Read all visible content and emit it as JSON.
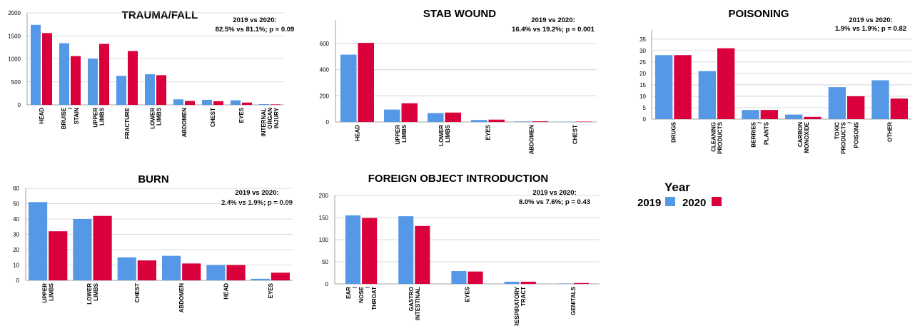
{
  "colors": {
    "year_2019": "#5598e6",
    "year_2020": "#d9003b",
    "grid": "#cfcfcf",
    "axis": "#888888"
  },
  "legend": {
    "title": "Year",
    "items": [
      "2019",
      "2020"
    ]
  },
  "chart_data": [
    {
      "type": "bar",
      "title": "TRAUMA/FALL",
      "stat_lines": [
        "2019 vs 2020:",
        "82.5% vs 81.1%; p = 0.09"
      ],
      "categories": [
        "HEAD",
        "BRUISE / STAIN",
        "UPPER LIMBS",
        "FRACTURE",
        "LOWER LIMBS",
        "ABDOMEN",
        "CHEST",
        "EYES",
        "INTERNAL ORGAN INJURY"
      ],
      "series": [
        {
          "name": "2019",
          "values": [
            1740,
            1340,
            1005,
            630,
            665,
            120,
            110,
            100,
            15
          ]
        },
        {
          "name": "2020",
          "values": [
            1560,
            1060,
            1325,
            1170,
            645,
            85,
            80,
            50,
            10
          ]
        }
      ],
      "ylim": [
        0,
        2000
      ],
      "yticks": [
        0,
        500,
        1000,
        1500,
        2000
      ],
      "grid": true
    },
    {
      "type": "bar",
      "title": "STAB WOUND",
      "stat_lines": [
        "2019 vs 2020:",
        "16.4% vs 19.2%; p = 0.001"
      ],
      "categories": [
        "HEAD",
        "UPPER LIMBS",
        "LOWER LIMBS",
        "EYES",
        "ABDOMEN",
        "CHEST"
      ],
      "series": [
        {
          "name": "2019",
          "values": [
            515,
            95,
            68,
            15,
            4,
            2
          ]
        },
        {
          "name": "2020",
          "values": [
            605,
            143,
            72,
            18,
            5,
            3
          ]
        }
      ],
      "ylim": [
        0,
        780
      ],
      "yticks": [
        0,
        200,
        400,
        600
      ],
      "grid": true
    },
    {
      "type": "bar",
      "title": "POISONING",
      "stat_lines": [
        "2019 vs 2020:",
        "1.9% vs 1.9%; p = 0.82"
      ],
      "categories": [
        "DRUGS",
        "CLEANING PRODUCTS",
        "BERRIES / PLANTS",
        "CARBON MONOXIDE",
        "TOXIC PRODUCTS / POISONS",
        "OTHER"
      ],
      "series": [
        {
          "name": "2019",
          "values": [
            28,
            21,
            4,
            2,
            14,
            17
          ]
        },
        {
          "name": "2020",
          "values": [
            28,
            31,
            4,
            1,
            10,
            9
          ]
        }
      ],
      "ylim": [
        0,
        39
      ],
      "yticks": [
        0,
        5,
        10,
        15,
        20,
        25,
        30,
        35
      ],
      "grid": true
    },
    {
      "type": "bar",
      "title": "BURN",
      "stat_lines": [
        "2019 vs 2020:",
        "2.4% vs 1.9%; p = 0.09"
      ],
      "categories": [
        "UPPER LIMBS",
        "LOWER LIMBS",
        "CHEST",
        "ABDOMEN",
        "HEAD",
        "EYES"
      ],
      "series": [
        {
          "name": "2019",
          "values": [
            51,
            40,
            15,
            16,
            10,
            1
          ]
        },
        {
          "name": "2020",
          "values": [
            32,
            42,
            13,
            11,
            10,
            5
          ]
        }
      ],
      "ylim": [
        0,
        60
      ],
      "yticks": [
        0,
        10,
        20,
        30,
        40,
        50,
        60
      ],
      "grid": true
    },
    {
      "type": "bar",
      "title": "FOREIGN OBJECT INTRODUCTION",
      "stat_lines": [
        "2019 vs 2020:",
        "8.0% vs 7.6%; p = 0.43"
      ],
      "categories": [
        "EAR / NOSE / THROAT",
        "GASTRO INTESTINAL",
        "EYES",
        "RESPIRATORY TRACT",
        "GENITALS"
      ],
      "series": [
        {
          "name": "2019",
          "values": [
            155,
            153,
            29,
            5,
            1
          ]
        },
        {
          "name": "2020",
          "values": [
            149,
            131,
            28,
            5,
            2
          ]
        }
      ],
      "ylim": [
        0,
        200
      ],
      "yticks": [
        0,
        50,
        100,
        150,
        200
      ],
      "grid": true
    }
  ]
}
